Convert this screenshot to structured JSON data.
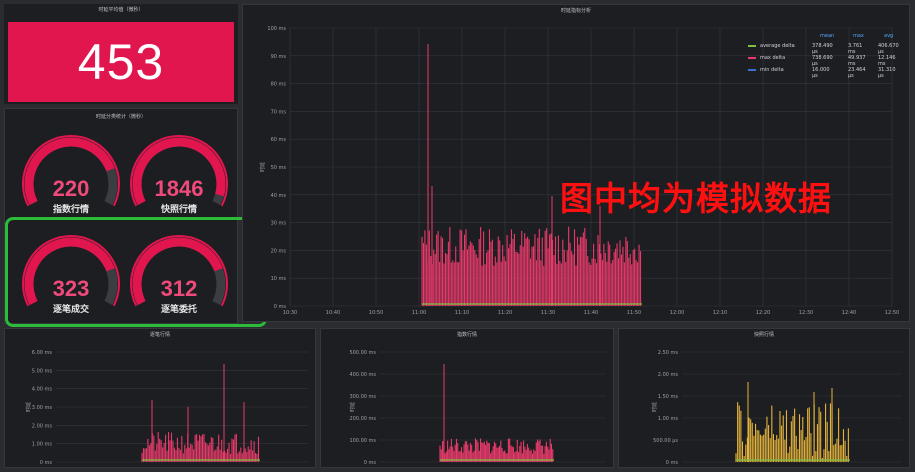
{
  "top_stat": {
    "title": "时延平均值（微秒）",
    "value": "453"
  },
  "gauges_panel": {
    "title": "时延分类统计（微秒）"
  },
  "gauges": [
    {
      "value": "220",
      "label": "指数行情",
      "fill": 0.8
    },
    {
      "value": "1846",
      "label": "快照行情",
      "fill": 0.95
    },
    {
      "value": "323",
      "label": "逐笔成交",
      "fill": 0.8
    },
    {
      "value": "312",
      "label": "逐笔委托",
      "fill": 0.8
    }
  ],
  "main_chart": {
    "title": "时延指标分析",
    "ylabel": "时延",
    "yticks": [
      "100 ms",
      "90 ms",
      "80 ms",
      "70 ms",
      "60 ms",
      "50 ms",
      "40 ms",
      "30 ms",
      "20 ms",
      "10 ms",
      "0 ms"
    ],
    "xticks": [
      "10:30",
      "10:40",
      "10:50",
      "11:00",
      "11:10",
      "11:20",
      "11:30",
      "11:40",
      "11:50",
      "12:00",
      "12:10",
      "12:20",
      "12:30",
      "12:40",
      "12:50"
    ],
    "legend_headers": [
      "mean",
      "max",
      "avg"
    ],
    "legend": [
      {
        "name": "average delta",
        "values": [
          "378.490 μs",
          "3.761 ms",
          "406.670 μs"
        ],
        "color": "#7ec242"
      },
      {
        "name": "max delta",
        "values": [
          "738.690 μs",
          "49.937 ms",
          "12.146 ms"
        ],
        "color": "#e83a6a"
      },
      {
        "name": "min delta",
        "values": [
          "16.000 μs",
          "23.464 μs",
          "31.310 μs"
        ],
        "color": "#3b6fd6"
      }
    ]
  },
  "overlay_text": "图中均为模拟数据",
  "bottom_charts": [
    {
      "title": "逐笔行情",
      "ylabel": "时延",
      "yticks": [
        "6.00 ms",
        "5.00 ms",
        "4.00 ms",
        "3.00 ms",
        "2.00 ms",
        "1.00 ms",
        "0 ms"
      ]
    },
    {
      "title": "指数行情",
      "ylabel": "时延",
      "yticks": [
        "500.00 ms",
        "400.00 ms",
        "300.00 ms",
        "200.00 ms",
        "100.00 ms",
        "0 ms"
      ]
    },
    {
      "title": "快照行情",
      "ylabel": "时延",
      "yticks": [
        "2.50 ms",
        "2.00 ms",
        "1.50 ms",
        "1.00 ms",
        "500.00 μs",
        "0 ms"
      ]
    }
  ],
  "colors": {
    "accent": "#e2164f",
    "series_max": "#e83a6a",
    "series_avg": "#7ec242",
    "series_min": "#3b6fd6",
    "highlight_box": "#2dbb3a",
    "overlay": "#ff1010"
  }
}
